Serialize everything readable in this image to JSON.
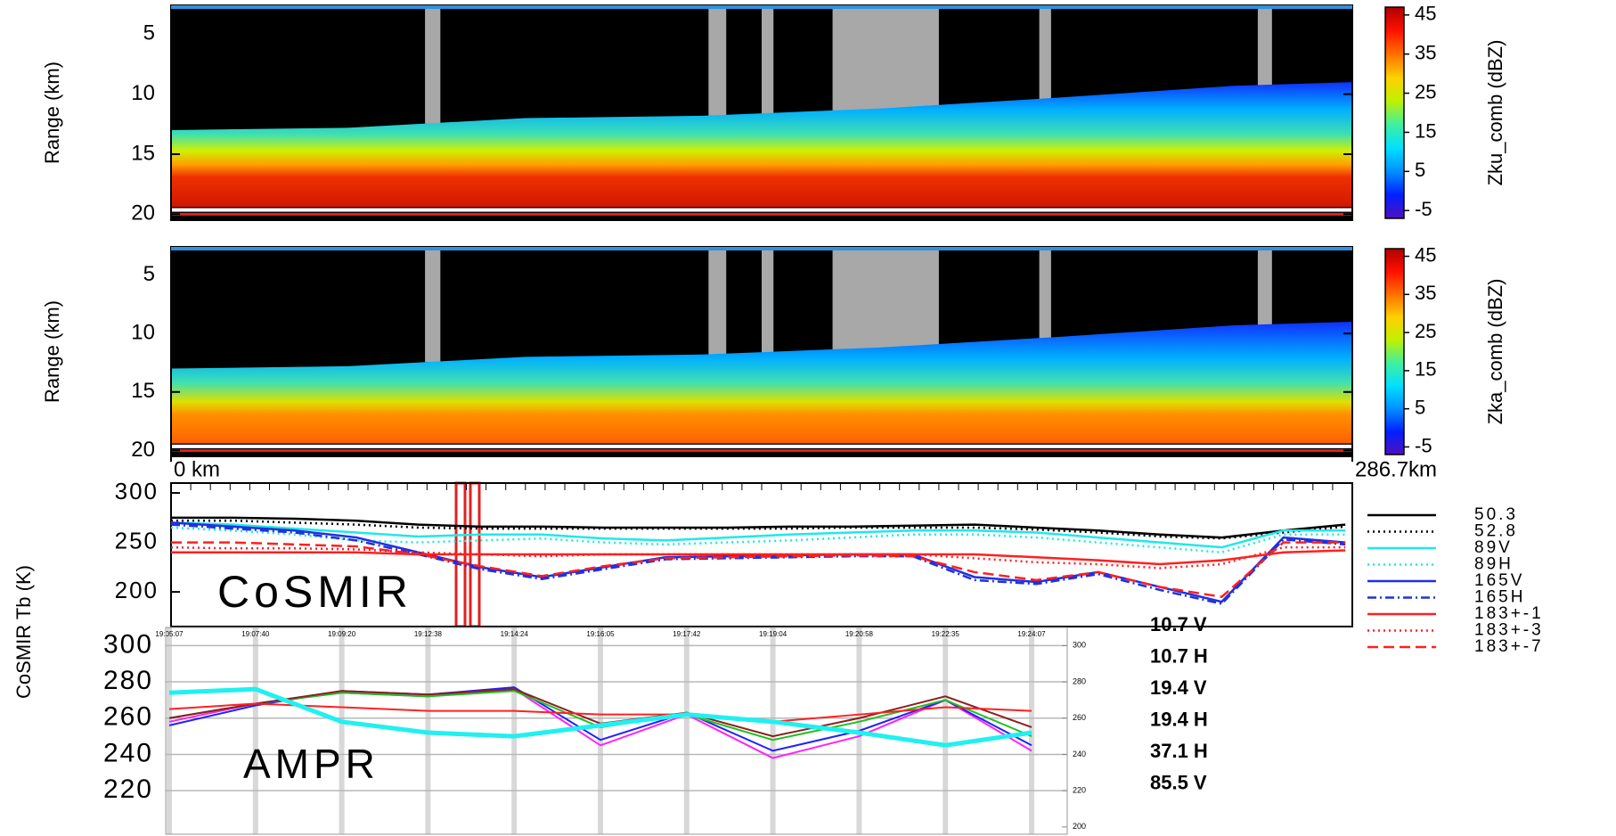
{
  "chart_data": [
    {
      "type": "heatmap",
      "ylabel": "Range (km)",
      "ylim": [
        2.6,
        20.5
      ],
      "y_inverted": true,
      "yticks": [
        5,
        10,
        15,
        20
      ],
      "colorbar": {
        "label": "Zku_comb (dBZ)",
        "lim": [
          -7,
          47
        ],
        "ticks": [
          -5,
          5,
          15,
          25,
          35,
          45
        ],
        "colors": [
          "#5010c0",
          "#0020ff",
          "#0090ff",
          "#00e0ff",
          "#40f0a0",
          "#c0f000",
          "#ffd000",
          "#ff7000",
          "#ff1000",
          "#b00000"
        ]
      }
    },
    {
      "type": "heatmap",
      "ylabel": "Range (km)",
      "ylim": [
        2.6,
        20.5
      ],
      "y_inverted": true,
      "yticks": [
        5,
        10,
        15,
        20
      ],
      "xlim": [
        0,
        286.7
      ],
      "xticks": [
        {
          "value": 0,
          "label": "0 km"
        },
        {
          "value": 286.7,
          "label": "286.7km"
        }
      ],
      "colorbar": {
        "label": "Zka_comb (dBZ)",
        "lim": [
          -7,
          47
        ],
        "ticks": [
          -5,
          5,
          15,
          25,
          35,
          45
        ],
        "colors": [
          "#5010c0",
          "#0020ff",
          "#0090ff",
          "#00e0ff",
          "#40f0a0",
          "#c0f000",
          "#ffd000",
          "#ff7000",
          "#ff1000",
          "#b00000"
        ]
      }
    },
    {
      "type": "line",
      "ylabel": "CoSMIR Tb (K)",
      "annotation": "CoSMIR",
      "x": [
        0,
        15,
        30,
        45,
        60,
        75,
        90,
        105,
        120,
        135,
        150,
        165,
        180,
        195,
        210,
        225,
        240,
        255,
        270,
        285
      ],
      "xlim": [
        0,
        286.7
      ],
      "ylim": [
        165,
        310
      ],
      "yticks": [
        200,
        250,
        300
      ],
      "series": [
        {
          "name": "50.3",
          "color": "#000000",
          "dash": "solid",
          "values": [
            275,
            275,
            274,
            272,
            268,
            266,
            266,
            265,
            265,
            265,
            266,
            266,
            267,
            268,
            265,
            262,
            258,
            255,
            262,
            268
          ]
        },
        {
          "name": "52.8",
          "color": "#000000",
          "dash": "dotted",
          "values": [
            272,
            272,
            270,
            268,
            265,
            264,
            264,
            264,
            264,
            264,
            264,
            265,
            265,
            265,
            263,
            260,
            256,
            254,
            260,
            266
          ]
        },
        {
          "name": "89V",
          "color": "#20e8e8",
          "dash": "solid",
          "values": [
            270,
            268,
            264,
            260,
            256,
            258,
            258,
            254,
            252,
            255,
            258,
            260,
            262,
            262,
            260,
            255,
            250,
            245,
            262,
            262
          ]
        },
        {
          "name": "89H",
          "color": "#20e8e8",
          "dash": "dotted",
          "values": [
            265,
            262,
            258,
            252,
            250,
            252,
            254,
            250,
            248,
            250,
            252,
            255,
            258,
            258,
            255,
            250,
            245,
            240,
            258,
            258
          ]
        },
        {
          "name": "165V",
          "color": "#2030e0",
          "dash": "solid",
          "values": [
            270,
            266,
            262,
            255,
            240,
            225,
            215,
            225,
            235,
            236,
            237,
            238,
            238,
            215,
            210,
            220,
            205,
            190,
            255,
            250
          ]
        },
        {
          "name": "165H",
          "color": "#2030e0",
          "dash": "dashdot",
          "values": [
            268,
            264,
            260,
            252,
            238,
            223,
            213,
            223,
            233,
            234,
            235,
            236,
            236,
            212,
            208,
            218,
            202,
            188,
            253,
            248
          ]
        },
        {
          "name": "183+-1",
          "color": "#ff2020",
          "dash": "solid",
          "values": [
            240,
            240,
            240,
            240,
            238,
            238,
            238,
            238,
            238,
            238,
            238,
            238,
            238,
            238,
            235,
            232,
            228,
            232,
            240,
            242
          ]
        },
        {
          "name": "183+-3",
          "color": "#ff2020",
          "dash": "dotted",
          "values": [
            245,
            244,
            244,
            243,
            240,
            238,
            236,
            238,
            238,
            238,
            238,
            238,
            238,
            234,
            230,
            228,
            224,
            228,
            245,
            245
          ]
        },
        {
          "name": "183+-7",
          "color": "#ff2020",
          "dash": "dashed",
          "values": [
            250,
            250,
            248,
            246,
            238,
            226,
            216,
            226,
            234,
            235,
            236,
            237,
            236,
            220,
            212,
            220,
            205,
            195,
            250,
            250
          ]
        }
      ]
    },
    {
      "type": "line",
      "annotation": "AMPR",
      "categories": [
        "19:05:07",
        "19:07:40",
        "19:09:20",
        "19:12:38",
        "19:14:24",
        "19:16:05",
        "19:17:42",
        "19:19:04",
        "19:20:58",
        "19:22:35",
        "19:24:07"
      ],
      "ylim": [
        196,
        310
      ],
      "yticks": [
        220,
        240,
        260,
        280,
        300
      ],
      "y2lim": [
        196,
        310
      ],
      "y2ticks": [
        200,
        220,
        240,
        260,
        280,
        300
      ],
      "grid": true,
      "series": [
        {
          "name": "10.7 V",
          "color": "#ff20ff",
          "values": [
            258,
            268,
            274,
            272,
            276,
            245,
            262,
            238,
            250,
            270,
            242
          ]
        },
        {
          "name": "10.7 H",
          "color": "#2020ff",
          "values": [
            256,
            267,
            275,
            273,
            277,
            248,
            263,
            242,
            253,
            270,
            245
          ]
        },
        {
          "name": "19.4 V",
          "color": "#20c020",
          "values": [
            260,
            268,
            274,
            272,
            275,
            255,
            262,
            248,
            258,
            270,
            250
          ]
        },
        {
          "name": "19.4 H",
          "color": "#8b2020",
          "values": [
            260,
            268,
            275,
            273,
            276,
            257,
            263,
            250,
            260,
            272,
            255
          ]
        },
        {
          "name": "37.1 H",
          "color": "#ff2020",
          "values": [
            265,
            268,
            266,
            264,
            264,
            262,
            262,
            258,
            262,
            266,
            264
          ]
        },
        {
          "name": "85.5 V",
          "color": "#20f0f0",
          "values": [
            274,
            276,
            258,
            252,
            250,
            256,
            262,
            258,
            252,
            245,
            252
          ]
        }
      ]
    }
  ]
}
